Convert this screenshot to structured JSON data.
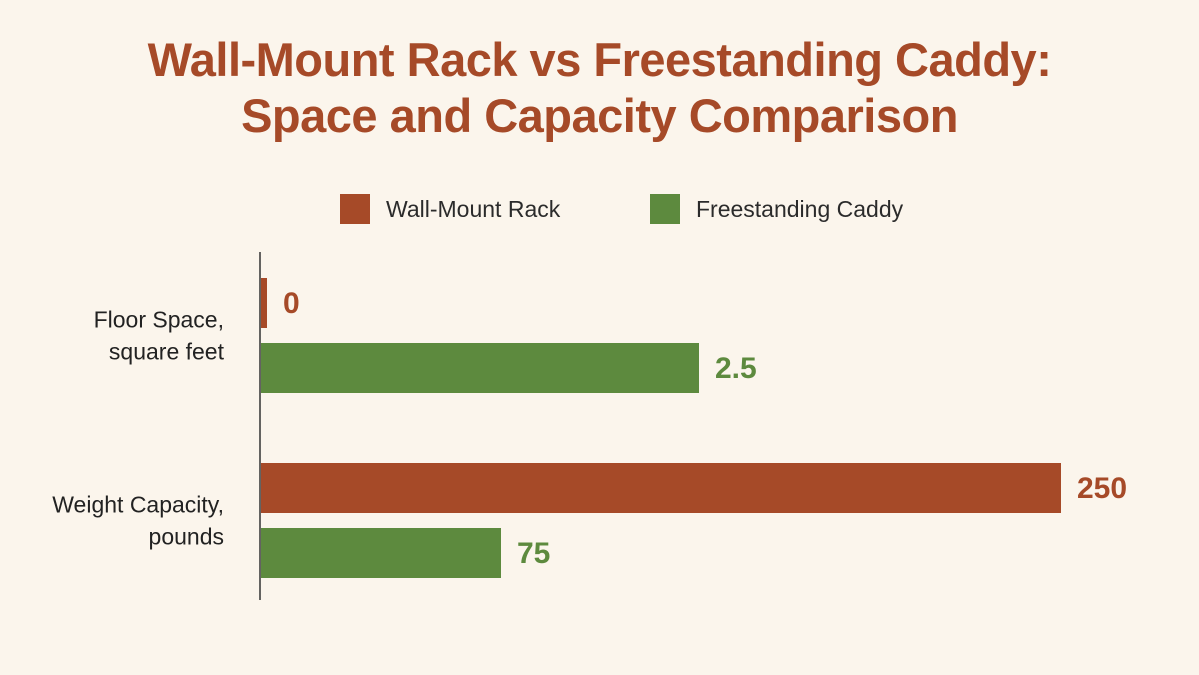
{
  "title": {
    "line1": "Wall-Mount Rack vs Freestanding Caddy:",
    "line2": "Space and Capacity Comparison"
  },
  "colors": {
    "wall_mount": "#a64a28",
    "freestanding": "#5d8a3e",
    "background": "#fbf5ec",
    "axis": "#333333"
  },
  "legend": {
    "placement": "top-center",
    "items": [
      {
        "label": "Wall-Mount Rack",
        "color": "#a64a28"
      },
      {
        "label": "Freestanding Caddy",
        "color": "#5d8a3e"
      }
    ]
  },
  "chart_data": {
    "type": "bar",
    "orientation": "horizontal",
    "title": "Wall-Mount Rack vs Freestanding Caddy: Space and Capacity Comparison",
    "categories": [
      {
        "line1": "Floor Space,",
        "line2": "square feet"
      },
      {
        "line1": "Weight Capacity,",
        "line2": "pounds"
      }
    ],
    "series": [
      {
        "name": "Wall-Mount Rack",
        "values": [
          0,
          250
        ],
        "labels": [
          "0",
          "250"
        ]
      },
      {
        "name": "Freestanding Caddy",
        "values": [
          2.5,
          75
        ],
        "labels": [
          "2.5",
          "75"
        ]
      }
    ],
    "scale_note": "each category drawn on its own scale",
    "grid": false
  }
}
